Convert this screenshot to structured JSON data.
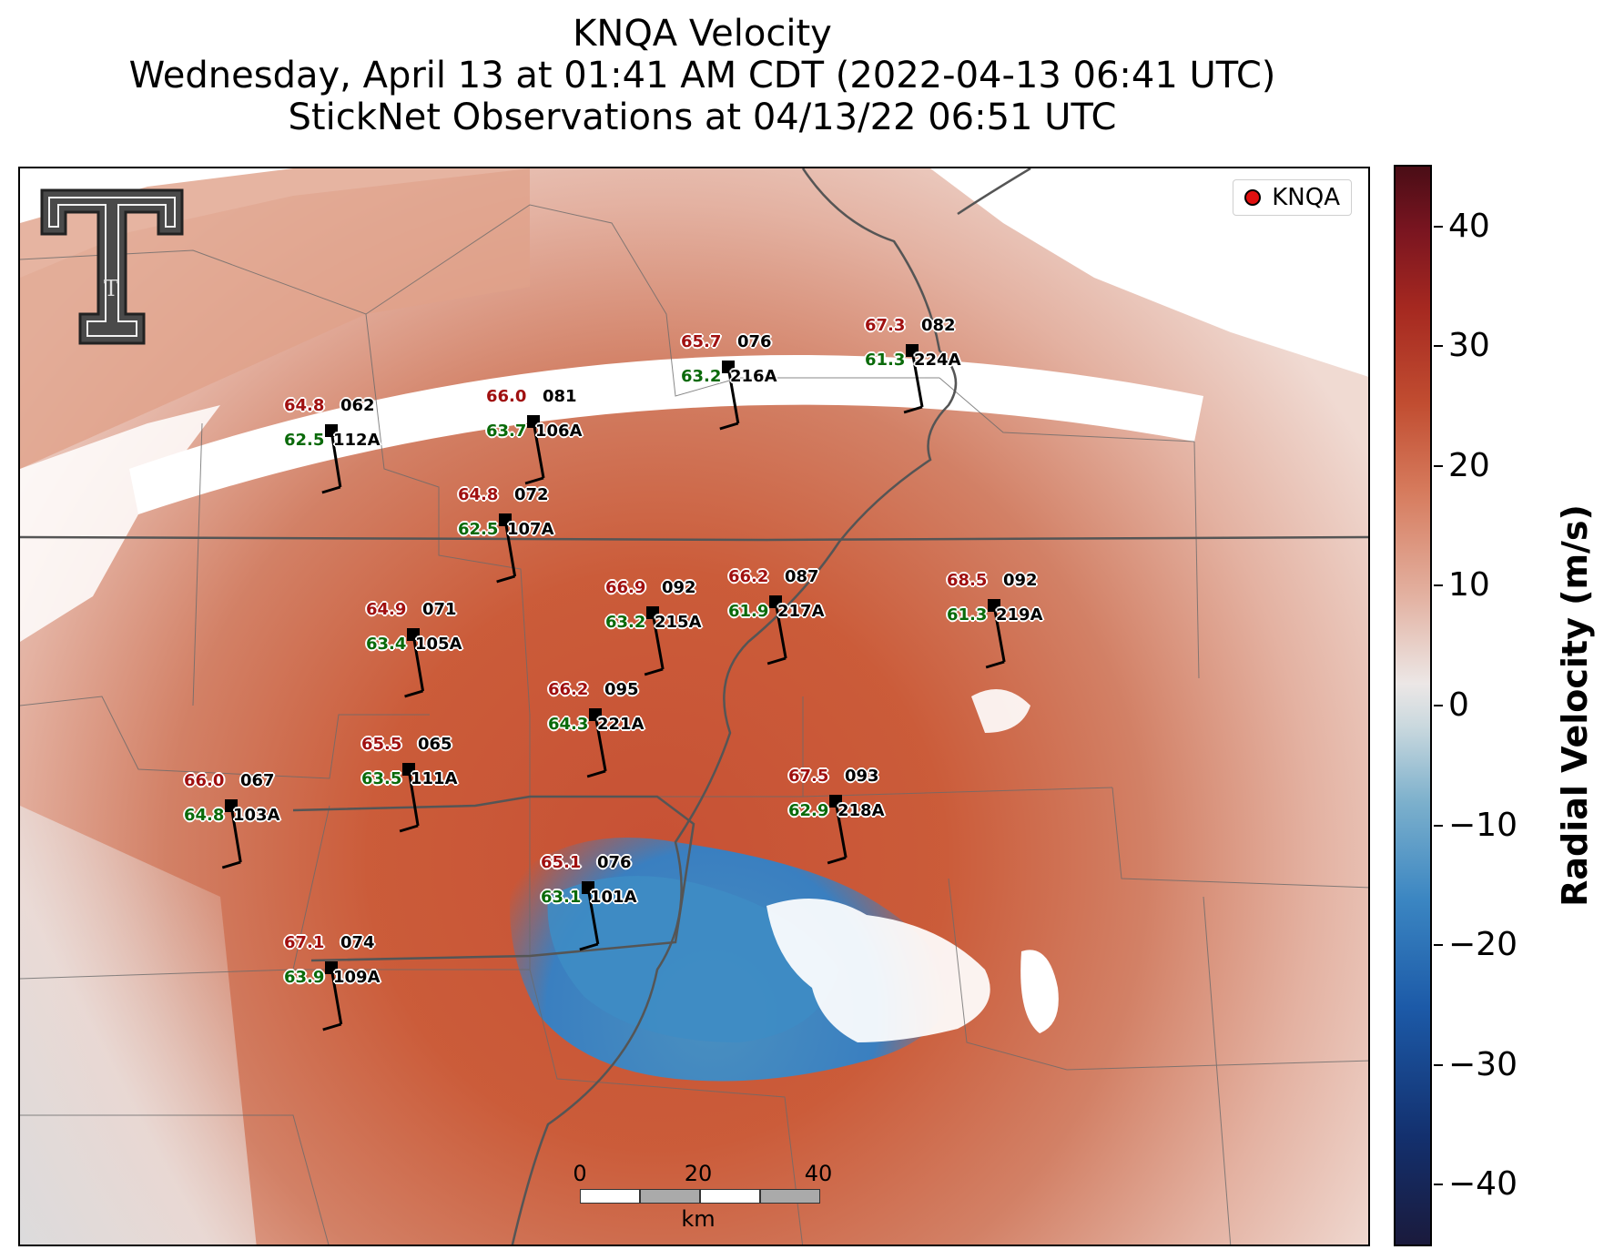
{
  "title": {
    "line1": "KNQA Velocity",
    "line2": "Wednesday, April 13 at 01:41 AM CDT (2022-04-13 06:41 UTC)",
    "line3": "StickNet Observations at 04/13/22 06:51 UTC"
  },
  "legend": {
    "label": "KNQA",
    "marker_color": "#e01010"
  },
  "logo": {
    "name": "texas-tech-double-t-logo",
    "text": "T"
  },
  "stations": [
    {
      "id": "112A",
      "temp": "64.8",
      "dew": "62.5",
      "wind_dir": "062"
    },
    {
      "id": "106A",
      "temp": "66.0",
      "dew": "63.7",
      "wind_dir": "081"
    },
    {
      "id": "216A",
      "temp": "65.7",
      "dew": "63.2",
      "wind_dir": "076"
    },
    {
      "id": "224A",
      "temp": "67.3",
      "dew": "61.3",
      "wind_dir": "082"
    },
    {
      "id": "107A",
      "temp": "64.8",
      "dew": "62.5",
      "wind_dir": "072"
    },
    {
      "id": "215A",
      "temp": "66.9",
      "dew": "63.2",
      "wind_dir": "092"
    },
    {
      "id": "217A",
      "temp": "66.2",
      "dew": "61.9",
      "wind_dir": "087"
    },
    {
      "id": "219A",
      "temp": "68.5",
      "dew": "61.3",
      "wind_dir": "092"
    },
    {
      "id": "105A",
      "temp": "64.9",
      "dew": "63.4",
      "wind_dir": "071"
    },
    {
      "id": "221A",
      "temp": "66.2",
      "dew": "64.3",
      "wind_dir": "095"
    },
    {
      "id": "111A",
      "temp": "65.5",
      "dew": "63.5",
      "wind_dir": "065"
    },
    {
      "id": "103A",
      "temp": "66.0",
      "dew": "64.8",
      "wind_dir": "067"
    },
    {
      "id": "218A",
      "temp": "67.5",
      "dew": "62.9",
      "wind_dir": "093"
    },
    {
      "id": "101A",
      "temp": "65.1",
      "dew": "63.1",
      "wind_dir": "076"
    },
    {
      "id": "109A",
      "temp": "67.1",
      "dew": "63.9",
      "wind_dir": "074"
    }
  ],
  "scalebar": {
    "ticks": [
      "0",
      "20",
      "40"
    ],
    "unit": "km"
  },
  "colorbar": {
    "label": "Radial Velocity (m/s)",
    "ticks": [
      "40",
      "30",
      "20",
      "10",
      "0",
      "−10",
      "−20",
      "−30",
      "−40"
    ],
    "range": [
      -45,
      45
    ],
    "colors": {
      "negative_max": "#1a1a3c",
      "negative": "#3b86c2",
      "zero": "#ece7e6",
      "positive": "#c14d31",
      "positive_max": "#4a0d16"
    }
  }
}
